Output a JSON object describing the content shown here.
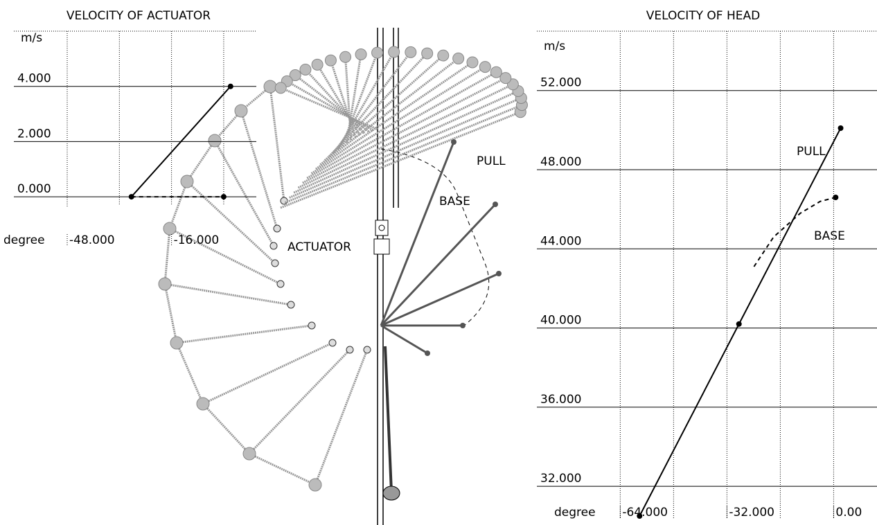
{
  "chart_data": [
    {
      "type": "line",
      "title": "VELOCITY OF ACTUATOR",
      "ylabel": "m/s",
      "xlabel": "degree",
      "xlim": [
        -48,
        10
      ],
      "ylim": [
        -0.4,
        6
      ],
      "xticks": [
        {
          "value": -48,
          "label": "-48.000"
        },
        {
          "value": -16,
          "label": "-16.000"
        }
      ],
      "xgrid": [
        -48,
        -32,
        -16,
        0
      ],
      "yticks": [
        {
          "value": 0,
          "label": "0.000"
        },
        {
          "value": 2,
          "label": "2.000"
        },
        {
          "value": 4,
          "label": "4.000"
        }
      ],
      "series": [
        {
          "color": "#000000",
          "dash": false,
          "x": [
            -28.3,
            2.1
          ],
          "values": [
            0,
            4
          ]
        },
        {
          "color": "#000000",
          "dash": true,
          "x": [
            -28.3,
            0
          ],
          "values": [
            0,
            0
          ]
        }
      ]
    },
    {
      "type": "line",
      "title": "VELOCITY OF HEAD",
      "ylabel": "m/s",
      "xlabel": "degree",
      "xlim": [
        -89,
        13
      ],
      "ylim": [
        30.5,
        55
      ],
      "xticks": [
        {
          "value": -64,
          "label": "-64.000"
        },
        {
          "value": -32,
          "label": "-32.000"
        },
        {
          "value": 0,
          "label": "0.00"
        }
      ],
      "xgrid": [
        -64,
        -48,
        -32,
        -16,
        0
      ],
      "yticks": [
        {
          "value": 32,
          "label": "32.000"
        },
        {
          "value": 36,
          "label": "36.000"
        },
        {
          "value": 40,
          "label": "40.000"
        },
        {
          "value": 44,
          "label": "44.000"
        },
        {
          "value": 48,
          "label": "48.000"
        },
        {
          "value": 52,
          "label": "52.000"
        }
      ],
      "annotations": [
        "PULL",
        "BASE"
      ],
      "series": [
        {
          "color": "#000000",
          "dash": false,
          "x": [
            -58.2,
            -28.4,
            2.1
          ],
          "values": [
            30.5,
            40.2,
            50.1
          ]
        },
        {
          "color": "#000000",
          "dash": true,
          "x": [
            -23.9,
            -18,
            -10,
            -4,
            0.6
          ],
          "values": [
            43.1,
            44.6,
            45.8,
            46.4,
            46.6
          ]
        }
      ]
    }
  ],
  "diagram": {
    "actuator": "ACTUATOR",
    "pull": "PULL",
    "base": "BASE"
  }
}
